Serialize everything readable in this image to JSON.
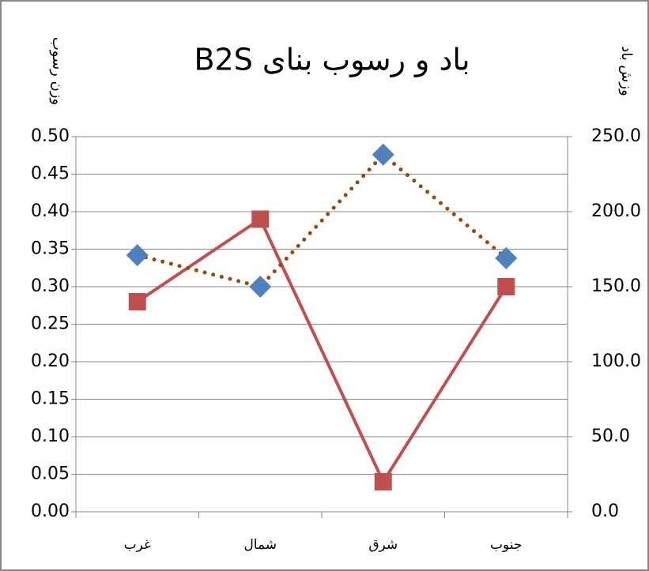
{
  "chart_data": {
    "type": "line",
    "title": "باد و رسوب بنای B2S",
    "y_label": "وزن رسوب",
    "y2_label": "وزش باد",
    "categories": [
      "غرب",
      "شمال",
      "شرق",
      "جنوب"
    ],
    "series": [
      {
        "color": "#c0504d",
        "marker": "square",
        "linestyle": "solid",
        "values": [
          0.28,
          0.39,
          0.04,
          0.3
        ]
      },
      {
        "color": "#4f81bd",
        "line_color": "#984807",
        "marker": "diamond",
        "linestyle": "dotted",
        "axis": "y2",
        "values": [
          171,
          150,
          238,
          169
        ]
      }
    ],
    "ylim": [
      0,
      0.5
    ],
    "yticks": [
      {
        "value": 0,
        "label": "0.00"
      },
      {
        "value": 0.05,
        "label": "0.05"
      },
      {
        "value": 0.1,
        "label": "0.10"
      },
      {
        "value": 0.15,
        "label": "0.15"
      },
      {
        "value": 0.2,
        "label": "0.20"
      },
      {
        "value": 0.25,
        "label": "0.25"
      },
      {
        "value": 0.3,
        "label": "0.30"
      },
      {
        "value": 0.35,
        "label": "0.35"
      },
      {
        "value": 0.4,
        "label": "0.40"
      },
      {
        "value": 0.45,
        "label": "0.45"
      },
      {
        "value": 0.5,
        "label": "0.50"
      }
    ],
    "y2lim": [
      0,
      250
    ],
    "y2ticks": [
      {
        "value": 0,
        "label": "0.0"
      },
      {
        "value": 50,
        "label": "50.0"
      },
      {
        "value": 100,
        "label": "100.0"
      },
      {
        "value": 150,
        "label": "150.0"
      },
      {
        "value": 200,
        "label": "200.0"
      },
      {
        "value": 250,
        "label": "250.0"
      }
    ],
    "grid": true
  }
}
